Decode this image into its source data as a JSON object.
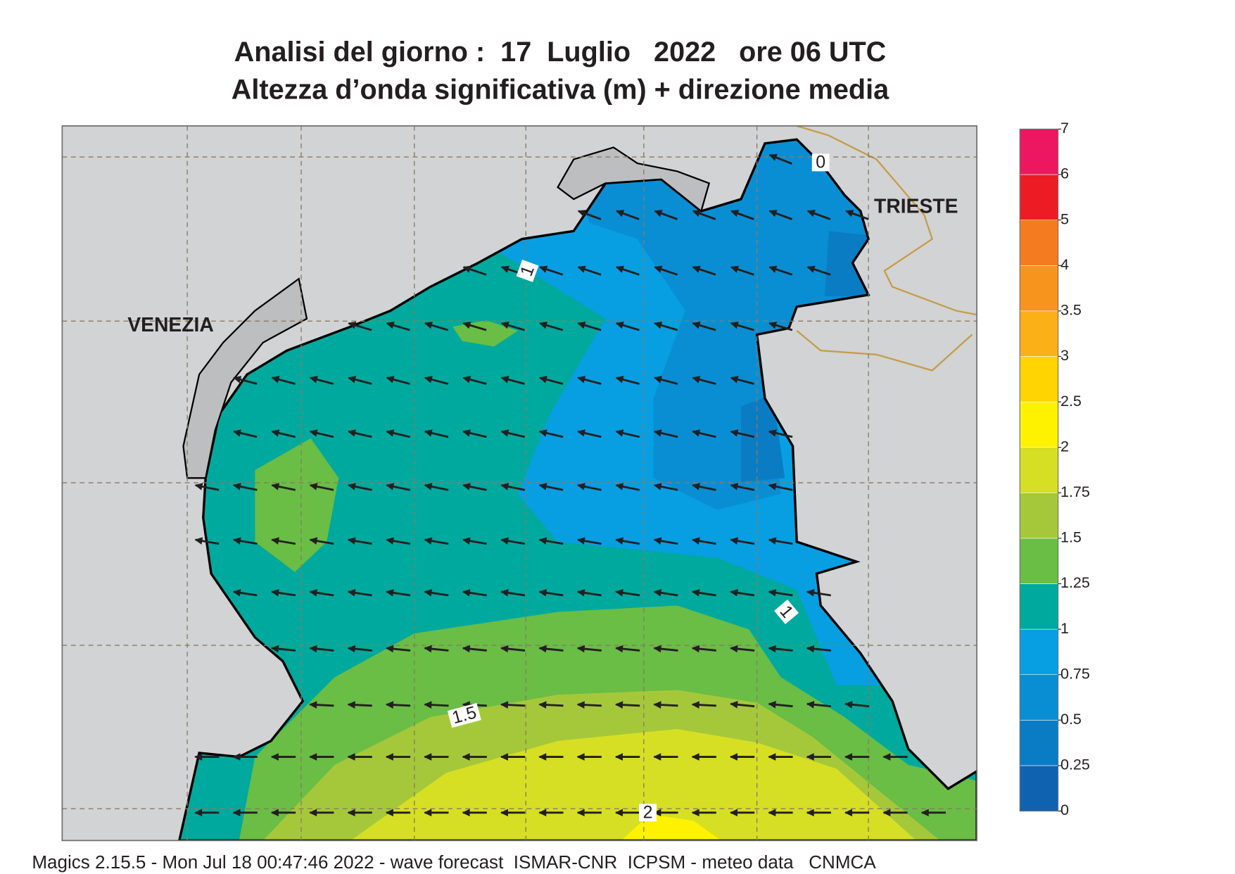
{
  "title": [
    "Analisi del giorno :  17  Luglio   2022   ore 06 UTC",
    "Altezza d’onda significativa (m) + direzione media"
  ],
  "place_labels": [
    "VENEZIA",
    "TRIESTE"
  ],
  "contour_labels": [
    0,
    1,
    1,
    1.5,
    2
  ],
  "colorbar": {
    "levels": [
      0,
      0.25,
      0.5,
      0.75,
      1,
      1.25,
      1.5,
      1.75,
      2,
      2.5,
      3,
      3.5,
      4,
      5,
      6,
      7
    ],
    "colors": [
      "#0f62b0",
      "#0a7cc4",
      "#0a8ed3",
      "#079fe2",
      "#00a99d",
      "#6abd45",
      "#a5c83b",
      "#d6df23",
      "#fff200",
      "#ffd400",
      "#fbb017",
      "#f7941d",
      "#f47b20",
      "#ed1c24",
      "#ec1760"
    ]
  },
  "footer": "Magics 2.15.5 - Mon Jul 18 00:47:46 2022 - wave forecast  ISMAR-CNR  ICPSM - meteo data   CNMCA"
}
